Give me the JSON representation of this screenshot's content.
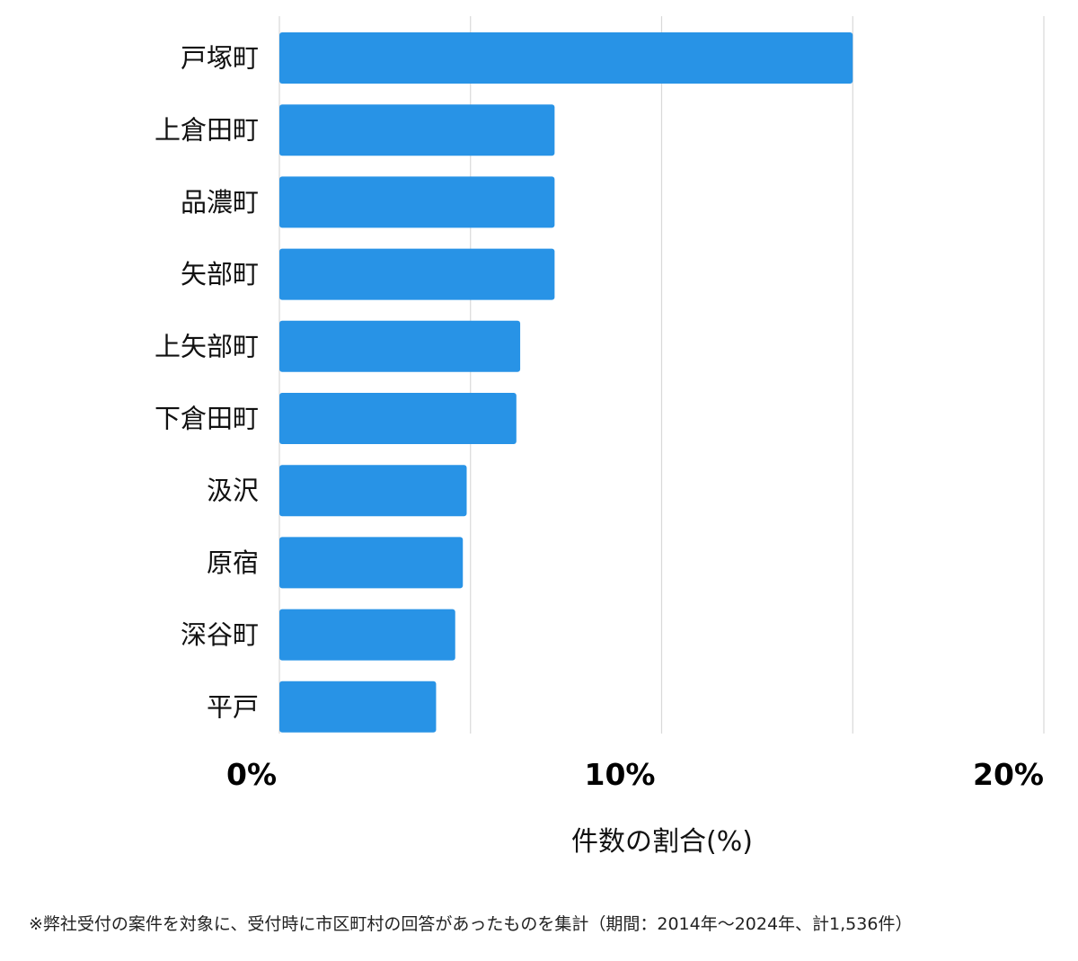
{
  "chart_data": {
    "type": "bar",
    "orientation": "horizontal",
    "categories": [
      "戸塚町",
      "上倉田町",
      "品濃町",
      "矢部町",
      "上矢部町",
      "下倉田町",
      "汲沢",
      "原宿",
      "深谷町",
      "平戸"
    ],
    "values": [
      15.0,
      7.2,
      7.2,
      7.2,
      6.3,
      6.2,
      4.9,
      4.8,
      4.6,
      4.1
    ],
    "xlim": [
      0,
      20
    ],
    "gridlines": [
      0,
      5,
      10,
      15,
      20
    ],
    "tick_labels": [
      {
        "value": 0,
        "label": "0%"
      },
      {
        "value": 10,
        "label": "10%"
      },
      {
        "value": 20,
        "label": "20%"
      }
    ],
    "xlabel": "件数の割合(%)",
    "ylabel": "",
    "title": "",
    "grid": true,
    "bar_color": "#2893e6",
    "grid_color": "#d9d9d9"
  },
  "footnote": "※弊社受付の案件を対象に、受付時に市区町村の回答があったものを集計（期間：2014年〜2024年、計1,536件）"
}
